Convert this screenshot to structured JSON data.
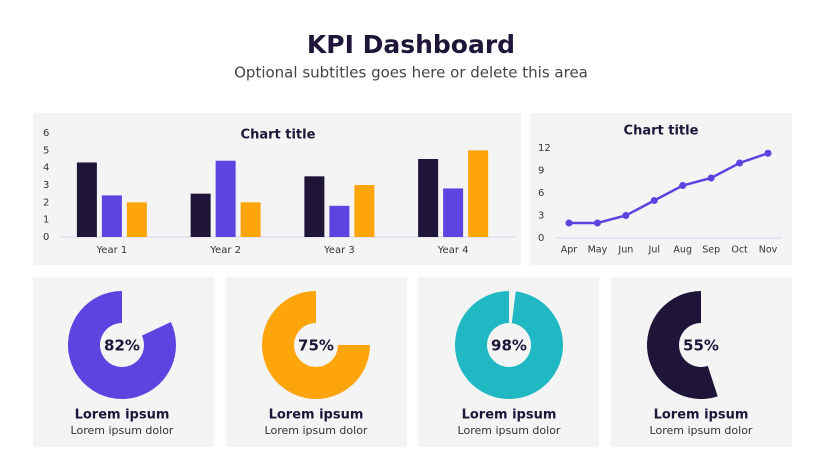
{
  "header": {
    "title": "KPI Dashboard",
    "subtitle": "Optional subtitles goes here or delete this area"
  },
  "chart_data": [
    {
      "type": "bar",
      "title": "Chart title",
      "categories": [
        "Year 1",
        "Year 2",
        "Year 3",
        "Year 4"
      ],
      "series": [
        {
          "color": "#1e1538",
          "values": [
            4.3,
            2.5,
            3.5,
            4.5
          ]
        },
        {
          "color": "#5b44e0",
          "values": [
            2.4,
            4.4,
            1.8,
            2.8
          ]
        },
        {
          "color": "#ffa50c",
          "values": [
            2.0,
            2.0,
            3.0,
            5.0
          ]
        }
      ],
      "ylim": [
        0,
        6
      ],
      "yticks": [
        0,
        1,
        2,
        3,
        4,
        5,
        6
      ],
      "grid": false
    },
    {
      "type": "line",
      "title": "Chart title",
      "categories": [
        "Apr",
        "May",
        "Jun",
        "Jul",
        "Aug",
        "Sep",
        "Oct",
        "Nov"
      ],
      "values": [
        2,
        2,
        3,
        5,
        7,
        8,
        10,
        11.3
      ],
      "color": "#5b44e0",
      "ylim": [
        0,
        12
      ],
      "yticks": [
        0,
        3,
        6,
        9,
        12
      ],
      "grid": false
    },
    {
      "type": "donut",
      "title": "Lorem ipsum",
      "subtitle": "Lorem ipsum dolor",
      "values": [
        82
      ],
      "value_labels": [
        "82%"
      ],
      "color": "#5b44e0"
    },
    {
      "type": "donut",
      "title": "Lorem ipsum",
      "subtitle": "Lorem ipsum dolor",
      "values": [
        75
      ],
      "value_labels": [
        "75%"
      ],
      "color": "#ffa50c"
    },
    {
      "type": "donut",
      "title": "Lorem ipsum",
      "subtitle": "Lorem ipsum dolor",
      "values": [
        98
      ],
      "value_labels": [
        "98%"
      ],
      "color": "#1fb8c3"
    },
    {
      "type": "donut",
      "title": "Lorem ipsum",
      "subtitle": "Lorem ipsum dolor",
      "values": [
        55
      ],
      "value_labels": [
        "55%"
      ],
      "color": "#1e1538"
    }
  ]
}
